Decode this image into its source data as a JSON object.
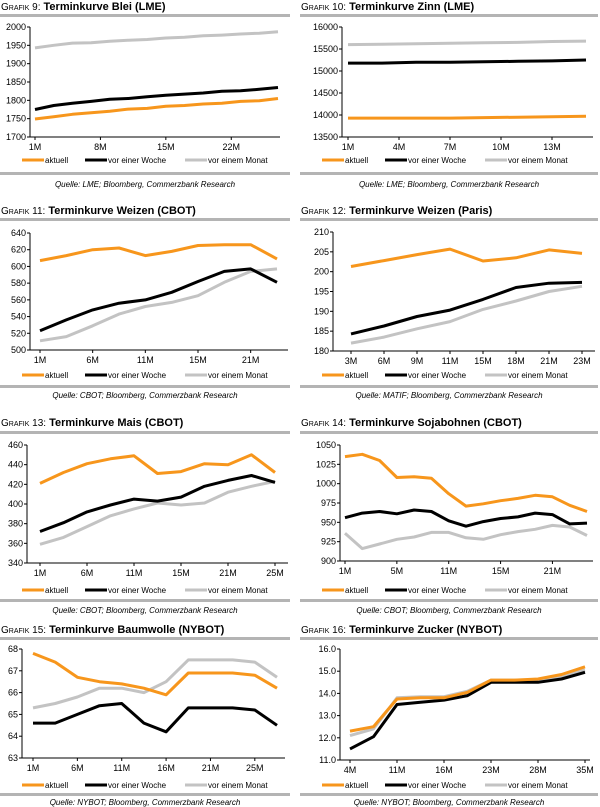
{
  "colors": {
    "aktuell": "#f7961c",
    "woche": "#000000",
    "monat": "#c3c3c3",
    "rule": "#b4b4b4"
  },
  "legend": [
    "aktuell",
    "vor einer Woche",
    "vor einem Monat"
  ],
  "chart_data": [
    {
      "type": "line",
      "title_prefix": "Grafik 9:",
      "title": "Terminkurve Blei (LME)",
      "source": "Quelle: LME; Bloomberg, Commerzbank Research",
      "ylim": [
        1700,
        2000
      ],
      "y_ticks": [
        "1700",
        "1750",
        "1800",
        "1850",
        "1900",
        "1950",
        "2000"
      ],
      "x": [
        1,
        3,
        5,
        7,
        9,
        11,
        13,
        15,
        17,
        19,
        21,
        23,
        25,
        27
      ],
      "x_ticks": [
        {
          "label": "1M",
          "at": 1
        },
        {
          "label": "8M",
          "at": 8
        },
        {
          "label": "15M",
          "at": 15
        },
        {
          "label": "22M",
          "at": 22
        }
      ],
      "series": [
        {
          "name": "aktuell",
          "values": [
            1749,
            1755,
            1762,
            1766,
            1770,
            1776,
            1778,
            1784,
            1786,
            1790,
            1792,
            1797,
            1799,
            1805
          ]
        },
        {
          "name": "vor einer Woche",
          "values": [
            1775,
            1786,
            1792,
            1797,
            1803,
            1805,
            1810,
            1814,
            1817,
            1820,
            1825,
            1826,
            1830,
            1835
          ]
        },
        {
          "name": "vor einem Monat",
          "values": [
            1943,
            1950,
            1956,
            1957,
            1961,
            1964,
            1966,
            1970,
            1972,
            1976,
            1978,
            1981,
            1983,
            1987
          ]
        }
      ]
    },
    {
      "type": "line",
      "title_prefix": "Grafik 10:",
      "title": "Terminkurve Zinn (LME)",
      "source": "Quelle: LME; Bloomberg, Commerzbank Research",
      "ylim": [
        13500,
        16000
      ],
      "y_ticks": [
        "13500",
        "14000",
        "14500",
        "15000",
        "15500",
        "16000"
      ],
      "x": [
        1,
        3,
        5,
        7,
        9,
        11,
        13,
        15
      ],
      "x_ticks": [
        {
          "label": "1M",
          "at": 1
        },
        {
          "label": "4M",
          "at": 4
        },
        {
          "label": "7M",
          "at": 7
        },
        {
          "label": "10M",
          "at": 10
        },
        {
          "label": "13M",
          "at": 13
        }
      ],
      "series": [
        {
          "name": "aktuell",
          "values": [
            13930,
            13930,
            13930,
            13930,
            13940,
            13950,
            13960,
            13970
          ]
        },
        {
          "name": "vor einer Woche",
          "values": [
            15180,
            15180,
            15200,
            15200,
            15210,
            15220,
            15230,
            15250
          ]
        },
        {
          "name": "vor einem Monat",
          "values": [
            15600,
            15610,
            15620,
            15630,
            15640,
            15650,
            15670,
            15680
          ]
        }
      ]
    },
    {
      "type": "line",
      "title_prefix": "Grafik 11:",
      "title": "Terminkurve Weizen (CBOT)",
      "source": "Quelle: CBOT; Bloomberg, Commerzbank Research",
      "ylim": [
        500,
        640
      ],
      "y_ticks": [
        "500",
        "520",
        "540",
        "560",
        "580",
        "600",
        "620",
        "640"
      ],
      "x_ticks": [
        {
          "label": "1M",
          "at": 0
        },
        {
          "label": "6M",
          "at": 2
        },
        {
          "label": "11M",
          "at": 4
        },
        {
          "label": "15M",
          "at": 6
        },
        {
          "label": "21M",
          "at": 8
        }
      ],
      "series": [
        {
          "name": "aktuell",
          "values": [
            607,
            613,
            620,
            622,
            613,
            618,
            625,
            626,
            626,
            609
          ]
        },
        {
          "name": "vor einer Woche",
          "values": [
            523,
            536,
            548,
            556,
            560,
            569,
            582,
            594,
            597,
            581
          ]
        },
        {
          "name": "vor einem Monat",
          "values": [
            511,
            516,
            529,
            543,
            552,
            557,
            565,
            581,
            594,
            597
          ]
        }
      ]
    },
    {
      "type": "line",
      "title_prefix": "Grafik 12:",
      "title": "Terminkurve Weizen (Paris)",
      "source": "Quelle: MATIF; Bloomberg, Commerzbank Research",
      "ylim": [
        180,
        210
      ],
      "y_ticks": [
        "180",
        "185",
        "190",
        "195",
        "200",
        "205",
        "210"
      ],
      "x_ticks": [
        {
          "label": "3M",
          "at": 0
        },
        {
          "label": "6M",
          "at": 1
        },
        {
          "label": "9M",
          "at": 2
        },
        {
          "label": "11M",
          "at": 3
        },
        {
          "label": "15M",
          "at": 4
        },
        {
          "label": "18M",
          "at": 5
        },
        {
          "label": "21M",
          "at": 6
        },
        {
          "label": "23M",
          "at": 7
        }
      ],
      "series": [
        {
          "name": "aktuell",
          "values": [
            201.3,
            202.8,
            204.3,
            205.7,
            202.7,
            203.5,
            205.5,
            204.6
          ]
        },
        {
          "name": "vor einer Woche",
          "values": [
            184.3,
            186.3,
            188.7,
            190.3,
            193.0,
            196.0,
            197.1,
            197.3
          ]
        },
        {
          "name": "vor einem Monat",
          "values": [
            182.0,
            183.5,
            185.6,
            187.4,
            190.5,
            192.6,
            195.0,
            196.3
          ]
        }
      ]
    },
    {
      "type": "line",
      "title_prefix": "Grafik 13:",
      "title": "Terminkurve Mais (CBOT)",
      "source": "Quelle: CBOT; Bloomberg, Commerzbank Research",
      "ylim": [
        340,
        460
      ],
      "y_ticks": [
        "340",
        "360",
        "380",
        "400",
        "420",
        "440",
        "460"
      ],
      "x_ticks": [
        {
          "label": "1M",
          "at": 0
        },
        {
          "label": "6M",
          "at": 2
        },
        {
          "label": "11M",
          "at": 4
        },
        {
          "label": "15M",
          "at": 6
        },
        {
          "label": "21M",
          "at": 8
        },
        {
          "label": "25M",
          "at": 10
        }
      ],
      "series": [
        {
          "name": "aktuell",
          "values": [
            421,
            432,
            441,
            446,
            449,
            431,
            433,
            441,
            440,
            450,
            432
          ]
        },
        {
          "name": "vor einer Woche",
          "values": [
            372,
            381,
            392,
            399,
            405,
            403,
            407,
            418,
            424,
            429,
            422
          ]
        },
        {
          "name": "vor einem Monat",
          "values": [
            359,
            366,
            377,
            388,
            395,
            401,
            399,
            401,
            412,
            418,
            423
          ]
        }
      ]
    },
    {
      "type": "line",
      "title_prefix": "Grafik 14:",
      "title": "Terminkurve Sojabohnen (CBOT)",
      "source": "Quelle: CBOT; Bloomberg, Commerzbank Research",
      "ylim": [
        900,
        1050
      ],
      "y_ticks": [
        "900",
        "925",
        "950",
        "975",
        "1000",
        "1025",
        "1050"
      ],
      "x_ticks": [
        {
          "label": "1M",
          "at": 0
        },
        {
          "label": "5M",
          "at": 3
        },
        {
          "label": "11M",
          "at": 6
        },
        {
          "label": "15M",
          "at": 9
        },
        {
          "label": "21M",
          "at": 12
        }
      ],
      "series": [
        {
          "name": "aktuell",
          "values": [
            1035,
            1038,
            1030,
            1008,
            1009,
            1007,
            987,
            971,
            974,
            978,
            981,
            985,
            983,
            972,
            964
          ]
        },
        {
          "name": "vor einer Woche",
          "values": [
            956,
            962,
            964,
            961,
            966,
            964,
            952,
            945,
            951,
            955,
            957,
            962,
            960,
            948,
            949
          ]
        },
        {
          "name": "vor einem Monat",
          "values": [
            936,
            916,
            922,
            928,
            931,
            937,
            937,
            930,
            928,
            934,
            938,
            941,
            946,
            944,
            933
          ]
        }
      ]
    },
    {
      "type": "line",
      "title_prefix": "Grafik 15:",
      "title": "Terminkurve Baumwolle (NYBOT)",
      "source": "Quelle: NYBOT; Bloomberg, Commerzbank Research",
      "ylim": [
        63,
        68
      ],
      "y_ticks": [
        "63",
        "64",
        "65",
        "66",
        "67",
        "68"
      ],
      "x_ticks": [
        {
          "label": "1M",
          "at": 0
        },
        {
          "label": "6M",
          "at": 2
        },
        {
          "label": "11M",
          "at": 4
        },
        {
          "label": "16M",
          "at": 6
        },
        {
          "label": "21M",
          "at": 8
        },
        {
          "label": "25M",
          "at": 10
        }
      ],
      "series": [
        {
          "name": "aktuell",
          "values": [
            67.8,
            67.4,
            66.7,
            66.5,
            66.4,
            66.2,
            65.9,
            66.9,
            66.9,
            66.9,
            66.8,
            66.2
          ]
        },
        {
          "name": "vor einer Woche",
          "values": [
            64.6,
            64.6,
            65.0,
            65.4,
            65.5,
            64.6,
            64.2,
            65.3,
            65.3,
            65.3,
            65.2,
            64.5
          ]
        },
        {
          "name": "vor einem Monat",
          "values": [
            65.3,
            65.5,
            65.8,
            66.2,
            66.2,
            66.0,
            66.5,
            67.5,
            67.5,
            67.5,
            67.4,
            66.7
          ]
        }
      ]
    },
    {
      "type": "line",
      "title_prefix": "Grafik 16:",
      "title": "Terminkurve Zucker (NYBOT)",
      "source": "Quelle: NYBOT; Bloomberg, Commerzbank Research",
      "ylim": [
        11,
        16
      ],
      "y_ticks": [
        "11.0",
        "12.0",
        "13.0",
        "14.0",
        "15.0",
        "16.0"
      ],
      "x_ticks": [
        {
          "label": "4M",
          "at": 0
        },
        {
          "label": "11M",
          "at": 2
        },
        {
          "label": "16M",
          "at": 4
        },
        {
          "label": "23M",
          "at": 6
        },
        {
          "label": "28M",
          "at": 8
        },
        {
          "label": "35M",
          "at": 10
        }
      ],
      "series": [
        {
          "name": "aktuell",
          "values": [
            12.3,
            12.5,
            13.75,
            13.8,
            13.8,
            14.05,
            14.6,
            14.6,
            14.65,
            14.85,
            15.2
          ]
        },
        {
          "name": "vor einer Woche",
          "values": [
            11.5,
            12.05,
            13.5,
            13.6,
            13.7,
            13.9,
            14.5,
            14.5,
            14.5,
            14.65,
            14.95
          ]
        },
        {
          "name": "vor einem Monat",
          "values": [
            12.1,
            12.4,
            13.8,
            13.85,
            13.85,
            14.1,
            14.6,
            14.6,
            14.6,
            14.75,
            15.05
          ]
        }
      ]
    }
  ]
}
